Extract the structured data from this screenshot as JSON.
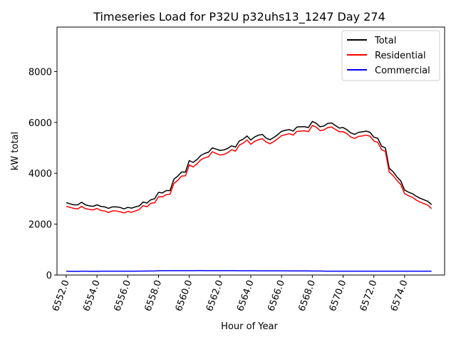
{
  "chart_data": {
    "type": "line",
    "title": "Timeseries Load for P32U p32uhs13_1247  Day 274",
    "xlabel": "Hour of Year",
    "ylabel": "kW total",
    "xlim": [
      6551.4,
      6576.6
    ],
    "ylim": [
      0,
      9750
    ],
    "x_ticks": [
      6552.0,
      6554.0,
      6556.0,
      6558.0,
      6560.0,
      6562.0,
      6564.0,
      6566.0,
      6568.0,
      6570.0,
      6572.0,
      6574.0
    ],
    "x_tick_labels": [
      "6552.0",
      "6554.0",
      "6556.0",
      "6558.0",
      "6560.0",
      "6562.0",
      "6564.0",
      "6566.0",
      "6568.0",
      "6570.0",
      "6572.0",
      "6574.0"
    ],
    "y_ticks": [
      0,
      2000,
      4000,
      6000,
      8000
    ],
    "y_tick_labels": [
      "0",
      "2000",
      "4000",
      "6000",
      "8000"
    ],
    "legend_position": "top-right",
    "x_start": 6552.0,
    "x_step": 0.25,
    "series": [
      {
        "name": "Total",
        "color": "#000000",
        "values": [
          2850,
          2800,
          2760,
          2760,
          2860,
          2760,
          2720,
          2700,
          2760,
          2700,
          2680,
          2620,
          2680,
          2680,
          2660,
          2600,
          2660,
          2630,
          2680,
          2720,
          2870,
          2830,
          2960,
          3000,
          3250,
          3230,
          3320,
          3320,
          3770,
          3890,
          4050,
          4050,
          4500,
          4430,
          4540,
          4700,
          4780,
          4830,
          5000,
          4950,
          4900,
          4920,
          4980,
          5080,
          5030,
          5270,
          5340,
          5470,
          5310,
          5430,
          5500,
          5530,
          5380,
          5320,
          5410,
          5520,
          5650,
          5690,
          5720,
          5660,
          5820,
          5830,
          5830,
          5800,
          6040,
          5970,
          5830,
          5860,
          5960,
          5980,
          5880,
          5780,
          5800,
          5710,
          5590,
          5530,
          5610,
          5630,
          5660,
          5610,
          5420,
          5380,
          5070,
          5000,
          4200,
          4060,
          3860,
          3700,
          3340,
          3260,
          3200,
          3100,
          3020,
          2960,
          2900,
          2770
        ]
      },
      {
        "name": "Residential",
        "color": "#ff0000",
        "values": [
          2700,
          2660,
          2620,
          2600,
          2700,
          2610,
          2580,
          2560,
          2620,
          2540,
          2520,
          2460,
          2520,
          2520,
          2490,
          2440,
          2500,
          2470,
          2520,
          2570,
          2730,
          2680,
          2820,
          2840,
          3080,
          3070,
          3160,
          3180,
          3600,
          3720,
          3890,
          3900,
          4330,
          4250,
          4370,
          4530,
          4610,
          4650,
          4850,
          4780,
          4720,
          4740,
          4810,
          4930,
          4870,
          5110,
          5180,
          5310,
          5140,
          5260,
          5320,
          5360,
          5230,
          5160,
          5250,
          5360,
          5480,
          5520,
          5560,
          5500,
          5650,
          5660,
          5670,
          5640,
          5880,
          5820,
          5680,
          5700,
          5800,
          5820,
          5730,
          5630,
          5640,
          5560,
          5430,
          5370,
          5450,
          5470,
          5500,
          5460,
          5270,
          5220,
          4930,
          4860,
          4050,
          3910,
          3720,
          3560,
          3200,
          3120,
          3060,
          2950,
          2870,
          2810,
          2750,
          2610
        ]
      },
      {
        "name": "Commercial",
        "color": "#0000ff",
        "values": [
          150,
          148,
          147,
          148,
          150,
          149,
          148,
          147,
          148,
          150,
          151,
          152,
          151,
          150,
          149,
          149,
          150,
          151,
          152,
          153,
          155,
          156,
          158,
          160,
          168,
          170,
          171,
          170,
          170,
          170,
          171,
          171,
          172,
          173,
          174,
          174,
          173,
          172,
          172,
          172,
          171,
          171,
          170,
          170,
          170,
          169,
          168,
          168,
          167,
          167,
          166,
          166,
          165,
          165,
          164,
          164,
          163,
          163,
          162,
          162,
          161,
          161,
          160,
          160,
          159,
          158,
          156,
          155,
          152,
          150,
          150,
          150,
          151,
          152,
          152,
          152,
          152,
          152,
          152,
          152,
          152,
          152,
          151,
          151,
          150,
          150,
          150,
          150,
          151,
          152,
          152,
          152,
          151,
          151,
          151,
          150
        ]
      }
    ]
  }
}
